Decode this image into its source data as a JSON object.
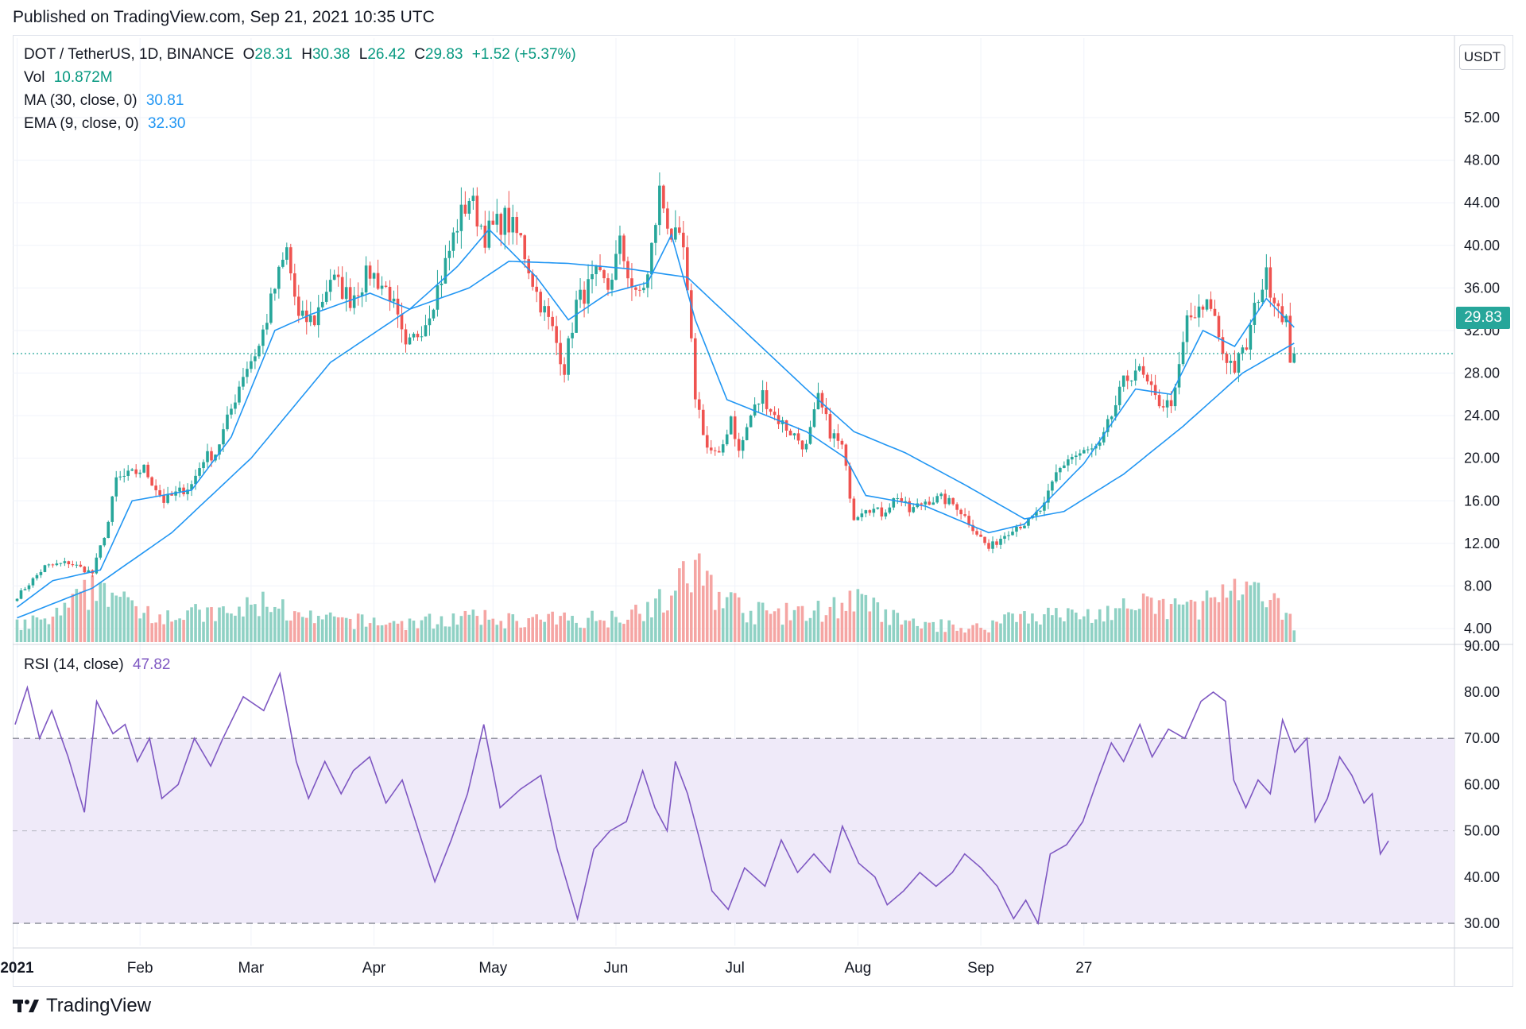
{
  "header": {
    "published": "Published on TradingView.com, Sep 21, 2021 10:35 UTC"
  },
  "legend": {
    "symbol": "DOT / TetherUS, 1D, BINANCE",
    "o_label": "O",
    "o": "28.31",
    "h_label": "H",
    "h": "30.38",
    "l_label": "L",
    "l": "26.42",
    "c_label": "C",
    "c": "29.83",
    "change": "+1.52 (+5.37%)",
    "vol_label": "Vol",
    "vol": "10.872M",
    "ma_label": "MA (30, close, 0)",
    "ma": "30.81",
    "ema_label": "EMA (9, close, 0)",
    "ema": "32.30",
    "rsi_label": "RSI (14, close)",
    "rsi": "47.82"
  },
  "price_axis": {
    "currency": "USDT",
    "last_price": "29.83"
  },
  "footer": {
    "brand": "TradingView"
  },
  "colors": {
    "up": "#26a69a",
    "down": "#ef5350",
    "vol_up": "#8fd1c4",
    "vol_down": "#f5a5a3",
    "ma": "#2196f3",
    "rsi": "#7e57c2",
    "rsi_band": "#efeaf9"
  },
  "chart_data": [
    {
      "type": "candlestick",
      "title": "DOT / TetherUS, 1D, BINANCE",
      "x_labels": [
        "2021",
        "Feb",
        "Mar",
        "Apr",
        "May",
        "Jun",
        "Jul",
        "Aug",
        "Sep",
        "27"
      ],
      "y_ticks": [
        4,
        8,
        12,
        16,
        20,
        24,
        28,
        32,
        36,
        40,
        44,
        48,
        52
      ],
      "ylim": [
        0,
        53
      ],
      "close_anchors": [
        {
          "d": 1,
          "v": 7.0
        },
        {
          "d": 8,
          "v": 9.8
        },
        {
          "d": 14,
          "v": 10.2
        },
        {
          "d": 20,
          "v": 9.2
        },
        {
          "d": 24,
          "v": 14.0
        },
        {
          "d": 26,
          "v": 18.0
        },
        {
          "d": 30,
          "v": 18.5
        },
        {
          "d": 33,
          "v": 19.0
        },
        {
          "d": 38,
          "v": 16.0
        },
        {
          "d": 45,
          "v": 17.5
        },
        {
          "d": 48,
          "v": 20.0
        },
        {
          "d": 51,
          "v": 20.5
        },
        {
          "d": 54,
          "v": 23.5
        },
        {
          "d": 58,
          "v": 28.0
        },
        {
          "d": 62,
          "v": 30.5
        },
        {
          "d": 66,
          "v": 36.0
        },
        {
          "d": 69,
          "v": 39.5
        },
        {
          "d": 72,
          "v": 33.0
        },
        {
          "d": 76,
          "v": 33.0
        },
        {
          "d": 80,
          "v": 37.0
        },
        {
          "d": 85,
          "v": 35.0
        },
        {
          "d": 90,
          "v": 37.5
        },
        {
          "d": 95,
          "v": 35.5
        },
        {
          "d": 99,
          "v": 30.0
        },
        {
          "d": 104,
          "v": 33.0
        },
        {
          "d": 108,
          "v": 37.0
        },
        {
          "d": 112,
          "v": 42.0
        },
        {
          "d": 115,
          "v": 44.5
        },
        {
          "d": 119,
          "v": 41.0
        },
        {
          "d": 124,
          "v": 42.5
        },
        {
          "d": 128,
          "v": 40.5
        },
        {
          "d": 132,
          "v": 35.5
        },
        {
          "d": 136,
          "v": 32.0
        },
        {
          "d": 139,
          "v": 28.5
        },
        {
          "d": 142,
          "v": 34.5
        },
        {
          "d": 147,
          "v": 37.0
        },
        {
          "d": 150,
          "v": 36.0
        },
        {
          "d": 153,
          "v": 40.0
        },
        {
          "d": 157,
          "v": 35.0
        },
        {
          "d": 160,
          "v": 37.0
        },
        {
          "d": 163,
          "v": 45.0
        },
        {
          "d": 166,
          "v": 41.0
        },
        {
          "d": 169,
          "v": 39.5
        },
        {
          "d": 172,
          "v": 26.0
        },
        {
          "d": 175,
          "v": 21.0
        },
        {
          "d": 178,
          "v": 20.0
        },
        {
          "d": 181,
          "v": 24.0
        },
        {
          "d": 183,
          "v": 20.5
        },
        {
          "d": 186,
          "v": 24.0
        },
        {
          "d": 189,
          "v": 26.0
        },
        {
          "d": 192,
          "v": 24.0
        },
        {
          "d": 196,
          "v": 22.5
        },
        {
          "d": 200,
          "v": 21.0
        },
        {
          "d": 203,
          "v": 25.5
        },
        {
          "d": 206,
          "v": 22.5
        },
        {
          "d": 209,
          "v": 21.0
        },
        {
          "d": 212,
          "v": 14.5
        },
        {
          "d": 215,
          "v": 15.5
        },
        {
          "d": 219,
          "v": 14.8
        },
        {
          "d": 223,
          "v": 16.5
        },
        {
          "d": 226,
          "v": 15.0
        },
        {
          "d": 230,
          "v": 16.0
        },
        {
          "d": 234,
          "v": 16.2
        },
        {
          "d": 238,
          "v": 15.5
        },
        {
          "d": 242,
          "v": 13.5
        },
        {
          "d": 246,
          "v": 11.5
        },
        {
          "d": 249,
          "v": 12.5
        },
        {
          "d": 252,
          "v": 13.5
        },
        {
          "d": 256,
          "v": 14.0
        },
        {
          "d": 260,
          "v": 15.5
        },
        {
          "d": 263,
          "v": 18.5
        },
        {
          "d": 266,
          "v": 20.0
        },
        {
          "d": 270,
          "v": 20.5
        },
        {
          "d": 274,
          "v": 21.0
        },
        {
          "d": 277,
          "v": 24.0
        },
        {
          "d": 280,
          "v": 27.0
        },
        {
          "d": 283,
          "v": 28.5
        },
        {
          "d": 285,
          "v": 27.5
        },
        {
          "d": 288,
          "v": 25.5
        },
        {
          "d": 291,
          "v": 25.0
        },
        {
          "d": 293,
          "v": 26.0
        },
        {
          "d": 296,
          "v": 33.0
        },
        {
          "d": 299,
          "v": 33.5
        },
        {
          "d": 302,
          "v": 34.5
        },
        {
          "d": 305,
          "v": 30.0
        },
        {
          "d": 308,
          "v": 28.5
        },
        {
          "d": 311,
          "v": 30.5
        },
        {
          "d": 314,
          "v": 35.5
        },
        {
          "d": 316,
          "v": 37.0
        },
        {
          "d": 319,
          "v": 34.5
        },
        {
          "d": 321,
          "v": 33.0
        },
        {
          "d": 322,
          "v": 28.3
        },
        {
          "d": 323,
          "v": 29.83
        }
      ],
      "volume_anchors": [
        {
          "d": 1,
          "v": 1.8
        },
        {
          "d": 10,
          "v": 2.5
        },
        {
          "d": 23,
          "v": 6.5
        },
        {
          "d": 28,
          "v": 4.0
        },
        {
          "d": 40,
          "v": 3.0
        },
        {
          "d": 55,
          "v": 3.0
        },
        {
          "d": 65,
          "v": 4.5
        },
        {
          "d": 72,
          "v": 2.5
        },
        {
          "d": 100,
          "v": 2.0
        },
        {
          "d": 112,
          "v": 2.6
        },
        {
          "d": 130,
          "v": 2.3
        },
        {
          "d": 150,
          "v": 2.6
        },
        {
          "d": 165,
          "v": 4.5
        },
        {
          "d": 172,
          "v": 8.0
        },
        {
          "d": 176,
          "v": 6.0
        },
        {
          "d": 185,
          "v": 3.2
        },
        {
          "d": 200,
          "v": 3.0
        },
        {
          "d": 212,
          "v": 4.5
        },
        {
          "d": 225,
          "v": 2.0
        },
        {
          "d": 245,
          "v": 1.5
        },
        {
          "d": 252,
          "v": 3.0
        },
        {
          "d": 270,
          "v": 2.8
        },
        {
          "d": 283,
          "v": 3.8
        },
        {
          "d": 298,
          "v": 3.8
        },
        {
          "d": 305,
          "v": 5.0
        },
        {
          "d": 315,
          "v": 5.0
        },
        {
          "d": 323,
          "v": 2.0
        }
      ],
      "ma30_anchors": [
        {
          "d": 1,
          "v": 5.0
        },
        {
          "d": 20,
          "v": 7.8
        },
        {
          "d": 40,
          "v": 13.0
        },
        {
          "d": 60,
          "v": 20.0
        },
        {
          "d": 80,
          "v": 29.0
        },
        {
          "d": 100,
          "v": 34.0
        },
        {
          "d": 115,
          "v": 36.0
        },
        {
          "d": 125,
          "v": 38.5
        },
        {
          "d": 140,
          "v": 38.3
        },
        {
          "d": 155,
          "v": 37.8
        },
        {
          "d": 170,
          "v": 37.0
        },
        {
          "d": 180,
          "v": 33.5
        },
        {
          "d": 190,
          "v": 30.0
        },
        {
          "d": 200,
          "v": 26.5
        },
        {
          "d": 212,
          "v": 22.5
        },
        {
          "d": 225,
          "v": 20.5
        },
        {
          "d": 240,
          "v": 17.5
        },
        {
          "d": 255,
          "v": 14.3
        },
        {
          "d": 265,
          "v": 15.0
        },
        {
          "d": 280,
          "v": 18.5
        },
        {
          "d": 295,
          "v": 23.0
        },
        {
          "d": 310,
          "v": 28.0
        },
        {
          "d": 323,
          "v": 30.81
        }
      ],
      "ema9_anchors": [
        {
          "d": 1,
          "v": 6.0
        },
        {
          "d": 10,
          "v": 8.5
        },
        {
          "d": 22,
          "v": 9.5
        },
        {
          "d": 30,
          "v": 16.0
        },
        {
          "d": 45,
          "v": 17.0
        },
        {
          "d": 55,
          "v": 22.0
        },
        {
          "d": 66,
          "v": 32.0
        },
        {
          "d": 75,
          "v": 33.5
        },
        {
          "d": 90,
          "v": 35.5
        },
        {
          "d": 100,
          "v": 34.0
        },
        {
          "d": 112,
          "v": 38.0
        },
        {
          "d": 120,
          "v": 41.5
        },
        {
          "d": 132,
          "v": 37.0
        },
        {
          "d": 140,
          "v": 33.0
        },
        {
          "d": 150,
          "v": 35.5
        },
        {
          "d": 160,
          "v": 36.5
        },
        {
          "d": 166,
          "v": 41.0
        },
        {
          "d": 172,
          "v": 33.0
        },
        {
          "d": 180,
          "v": 25.5
        },
        {
          "d": 190,
          "v": 24.0
        },
        {
          "d": 200,
          "v": 22.5
        },
        {
          "d": 210,
          "v": 20.0
        },
        {
          "d": 215,
          "v": 16.5
        },
        {
          "d": 230,
          "v": 15.5
        },
        {
          "d": 246,
          "v": 13.0
        },
        {
          "d": 255,
          "v": 13.8
        },
        {
          "d": 270,
          "v": 19.5
        },
        {
          "d": 283,
          "v": 26.5
        },
        {
          "d": 292,
          "v": 26.0
        },
        {
          "d": 300,
          "v": 32.0
        },
        {
          "d": 308,
          "v": 30.5
        },
        {
          "d": 316,
          "v": 35.0
        },
        {
          "d": 323,
          "v": 32.3
        }
      ]
    },
    {
      "type": "line",
      "title": "RSI (14, close)",
      "y_ticks": [
        30,
        40,
        50,
        60,
        70,
        80,
        90
      ],
      "ylim": [
        28,
        90
      ],
      "band": [
        30,
        70
      ],
      "midline": 50,
      "rsi_anchors": [
        {
          "d": 1,
          "v": 73
        },
        {
          "d": 4,
          "v": 81
        },
        {
          "d": 7,
          "v": 70
        },
        {
          "d": 10,
          "v": 76
        },
        {
          "d": 14,
          "v": 66
        },
        {
          "d": 18,
          "v": 54
        },
        {
          "d": 21,
          "v": 78
        },
        {
          "d": 25,
          "v": 71
        },
        {
          "d": 28,
          "v": 73
        },
        {
          "d": 31,
          "v": 65
        },
        {
          "d": 34,
          "v": 70
        },
        {
          "d": 37,
          "v": 57
        },
        {
          "d": 41,
          "v": 60
        },
        {
          "d": 45,
          "v": 70
        },
        {
          "d": 49,
          "v": 64
        },
        {
          "d": 52,
          "v": 70
        },
        {
          "d": 57,
          "v": 79
        },
        {
          "d": 62,
          "v": 76
        },
        {
          "d": 66,
          "v": 84
        },
        {
          "d": 70,
          "v": 65
        },
        {
          "d": 73,
          "v": 57
        },
        {
          "d": 77,
          "v": 65
        },
        {
          "d": 81,
          "v": 58
        },
        {
          "d": 84,
          "v": 63
        },
        {
          "d": 88,
          "v": 66
        },
        {
          "d": 92,
          "v": 56
        },
        {
          "d": 96,
          "v": 61
        },
        {
          "d": 100,
          "v": 50
        },
        {
          "d": 104,
          "v": 39
        },
        {
          "d": 108,
          "v": 48
        },
        {
          "d": 112,
          "v": 58
        },
        {
          "d": 116,
          "v": 73
        },
        {
          "d": 120,
          "v": 55
        },
        {
          "d": 125,
          "v": 59
        },
        {
          "d": 130,
          "v": 62
        },
        {
          "d": 134,
          "v": 46
        },
        {
          "d": 139,
          "v": 31
        },
        {
          "d": 143,
          "v": 46
        },
        {
          "d": 147,
          "v": 50
        },
        {
          "d": 151,
          "v": 52
        },
        {
          "d": 155,
          "v": 63
        },
        {
          "d": 158,
          "v": 55
        },
        {
          "d": 161,
          "v": 50
        },
        {
          "d": 163,
          "v": 65
        },
        {
          "d": 166,
          "v": 58
        },
        {
          "d": 169,
          "v": 48
        },
        {
          "d": 172,
          "v": 37
        },
        {
          "d": 176,
          "v": 33
        },
        {
          "d": 180,
          "v": 42
        },
        {
          "d": 185,
          "v": 38
        },
        {
          "d": 189,
          "v": 48
        },
        {
          "d": 193,
          "v": 41
        },
        {
          "d": 197,
          "v": 45
        },
        {
          "d": 201,
          "v": 41
        },
        {
          "d": 204,
          "v": 51
        },
        {
          "d": 208,
          "v": 43
        },
        {
          "d": 212,
          "v": 40
        },
        {
          "d": 215,
          "v": 34
        },
        {
          "d": 219,
          "v": 37
        },
        {
          "d": 223,
          "v": 41
        },
        {
          "d": 227,
          "v": 38
        },
        {
          "d": 231,
          "v": 41
        },
        {
          "d": 234,
          "v": 45
        },
        {
          "d": 238,
          "v": 42
        },
        {
          "d": 242,
          "v": 38
        },
        {
          "d": 246,
          "v": 31
        },
        {
          "d": 249,
          "v": 35
        },
        {
          "d": 252,
          "v": 30
        },
        {
          "d": 255,
          "v": 45
        },
        {
          "d": 259,
          "v": 47
        },
        {
          "d": 263,
          "v": 52
        },
        {
          "d": 267,
          "v": 62
        },
        {
          "d": 270,
          "v": 69
        },
        {
          "d": 273,
          "v": 65
        },
        {
          "d": 277,
          "v": 73
        },
        {
          "d": 280,
          "v": 66
        },
        {
          "d": 284,
          "v": 72
        },
        {
          "d": 288,
          "v": 70
        },
        {
          "d": 292,
          "v": 78
        },
        {
          "d": 295,
          "v": 80
        },
        {
          "d": 298,
          "v": 78
        },
        {
          "d": 300,
          "v": 61
        },
        {
          "d": 303,
          "v": 55
        },
        {
          "d": 306,
          "v": 61
        },
        {
          "d": 309,
          "v": 58
        },
        {
          "d": 312,
          "v": 74
        },
        {
          "d": 315,
          "v": 67
        },
        {
          "d": 318,
          "v": 70
        },
        {
          "d": 320,
          "v": 52
        },
        {
          "d": 323,
          "v": 57
        },
        {
          "d": 326,
          "v": 66
        },
        {
          "d": 329,
          "v": 62
        },
        {
          "d": 332,
          "v": 56
        },
        {
          "d": 334,
          "v": 58
        },
        {
          "d": 336,
          "v": 45
        },
        {
          "d": 338,
          "v": 47.82
        }
      ]
    }
  ]
}
